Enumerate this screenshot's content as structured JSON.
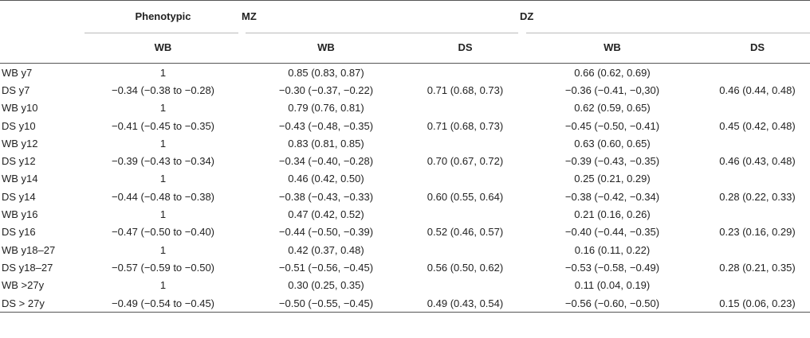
{
  "header": {
    "phenotypic": "Phenotypic",
    "mz": "MZ",
    "dz": "DZ",
    "sub": {
      "phenotypic_wb": "WB",
      "mz_wb": "WB",
      "mz_ds": "DS",
      "dz_wb": "WB",
      "dz_ds": "DS"
    }
  },
  "rows": [
    {
      "label": "WB y7",
      "ph": "1",
      "mz_wb": "0.85 (0.83, 0.87)",
      "mz_ds": "",
      "dz_wb": "0.66 (0.62, 0.69)",
      "dz_ds": ""
    },
    {
      "label": "DS y7",
      "ph": "−0.34 (−0.38 to −0.28)",
      "mz_wb": "−0.30 (−0.37, −0.22)",
      "mz_ds": "0.71 (0.68, 0.73)",
      "dz_wb": "−0.36 (−0.41, −0,30)",
      "dz_ds": "0.46 (0.44, 0.48)"
    },
    {
      "label": "WB y10",
      "ph": "1",
      "mz_wb": "0.79 (0.76, 0.81)",
      "mz_ds": "",
      "dz_wb": "0.62 (0.59, 0.65)",
      "dz_ds": ""
    },
    {
      "label": "DS y10",
      "ph": "−0.41 (−0.45 to −0.35)",
      "mz_wb": "−0.43 (−0.48, −0.35)",
      "mz_ds": "0.71 (0.68, 0.73)",
      "dz_wb": "−0.45 (−0.50, −0.41)",
      "dz_ds": "0.45 (0.42, 0.48)"
    },
    {
      "label": "WB y12",
      "ph": "1",
      "mz_wb": "0.83 (0.81, 0.85)",
      "mz_ds": "",
      "dz_wb": "0.63 (0.60, 0.65)",
      "dz_ds": ""
    },
    {
      "label": "DS y12",
      "ph": "−0.39 (−0.43 to −0.34)",
      "mz_wb": "−0.34 (−0.40, −0.28)",
      "mz_ds": "0.70 (0.67, 0.72)",
      "dz_wb": "−0.39 (−0.43, −0.35)",
      "dz_ds": "0.46 (0.43, 0.48)"
    },
    {
      "label": "WB y14",
      "ph": "1",
      "mz_wb": "0.46 (0.42, 0.50)",
      "mz_ds": "",
      "dz_wb": "0.25 (0.21, 0.29)",
      "dz_ds": ""
    },
    {
      "label": "DS y14",
      "ph": "−0.44 (−0.48 to −0.38)",
      "mz_wb": "−0.38 (−0.43, −0.33)",
      "mz_ds": "0.60 (0.55, 0.64)",
      "dz_wb": "−0.38 (−0.42, −0.34)",
      "dz_ds": "0.28 (0.22, 0.33)"
    },
    {
      "label": "WB y16",
      "ph": "1",
      "mz_wb": "0.47 (0.42, 0.52)",
      "mz_ds": "",
      "dz_wb": "0.21 (0.16, 0.26)",
      "dz_ds": ""
    },
    {
      "label": "DS y16",
      "ph": "−0.47 (−0.50 to −0.40)",
      "mz_wb": "−0.44 (−0.50, −0.39)",
      "mz_ds": "0.52 (0.46, 0.57)",
      "dz_wb": "−0.40 (−0.44, −0.35)",
      "dz_ds": "0.23 (0.16, 0.29)"
    },
    {
      "label": "WB y18–27",
      "ph": "1",
      "mz_wb": "0.42 (0.37, 0.48)",
      "mz_ds": "",
      "dz_wb": "0.16 (0.11, 0.22)",
      "dz_ds": ""
    },
    {
      "label": "DS y18–27",
      "ph": "−0.57 (−0.59 to −0.50)",
      "mz_wb": "−0.51 (−0.56, −0.45)",
      "mz_ds": "0.56 (0.50, 0.62)",
      "dz_wb": "−0.53 (−0.58, −0.49)",
      "dz_ds": "0.28 (0.21, 0.35)"
    },
    {
      "label": "WB >27y",
      "ph": "1",
      "mz_wb": "0.30 (0.25, 0.35)",
      "mz_ds": "",
      "dz_wb": "0.11 (0.04, 0.19)",
      "dz_ds": ""
    },
    {
      "label": "DS > 27y",
      "ph": "−0.49 (−0.54 to −0.45)",
      "mz_wb": "−0.50 (−0.55, −0.45)",
      "mz_ds": "0.49 (0.43, 0.54)",
      "dz_wb": "−0.56 (−0.60, −0.50)",
      "dz_ds": "0.15 (0.06, 0.23)"
    }
  ]
}
